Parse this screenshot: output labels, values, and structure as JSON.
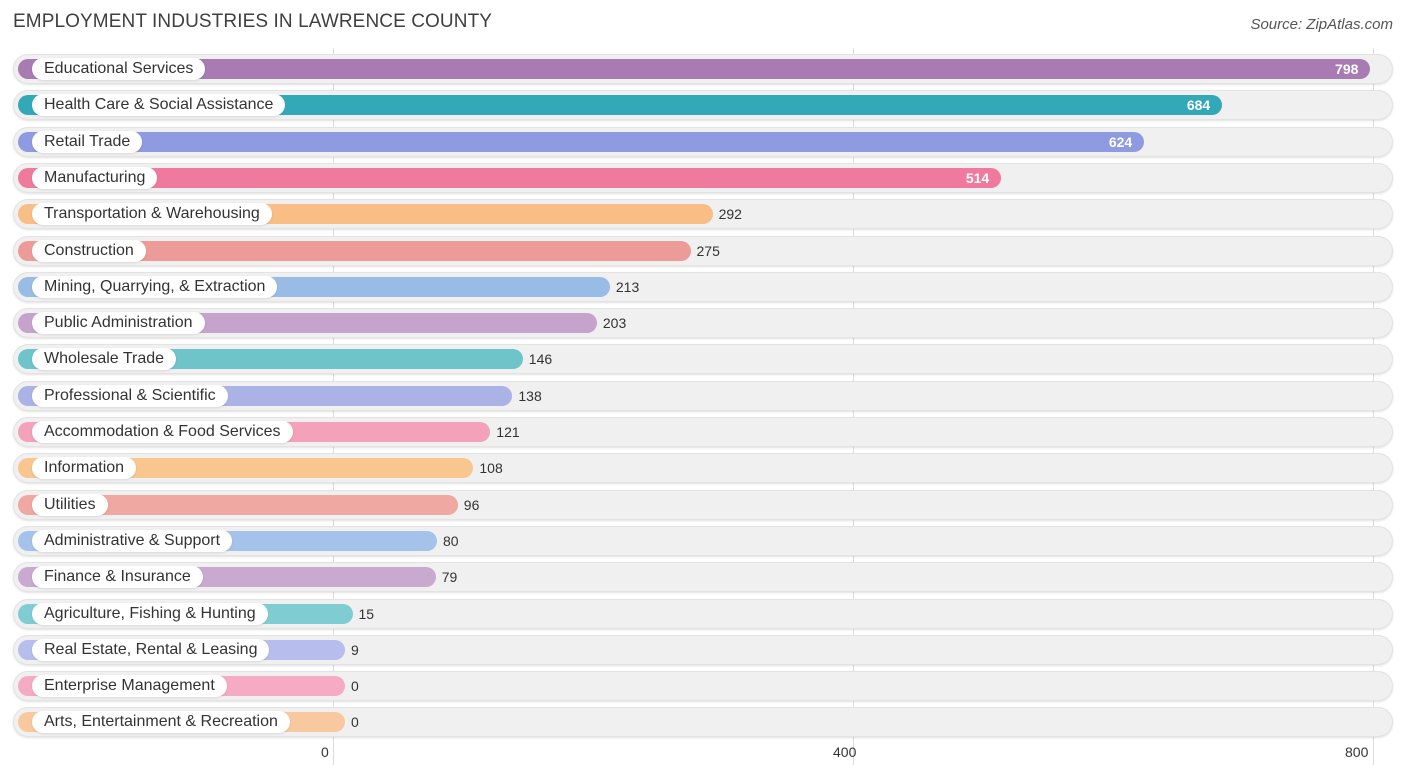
{
  "chart_data": {
    "type": "bar",
    "orientation": "horizontal",
    "title": "EMPLOYMENT INDUSTRIES IN LAWRENCE COUNTY",
    "source": "Source: ZipAtlas.com",
    "xlim": [
      0,
      800
    ],
    "ticks": [
      "0",
      "400",
      "800"
    ],
    "categories": [
      "Educational Services",
      "Health Care & Social Assistance",
      "Retail Trade",
      "Manufacturing",
      "Transportation & Warehousing",
      "Construction",
      "Mining, Quarrying, & Extraction",
      "Public Administration",
      "Wholesale Trade",
      "Professional & Scientific",
      "Accommodation & Food Services",
      "Information",
      "Utilities",
      "Administrative & Support",
      "Finance & Insurance",
      "Agriculture, Fishing & Hunting",
      "Real Estate, Rental & Leasing",
      "Enterprise Management",
      "Arts, Entertainment & Recreation"
    ],
    "values": [
      798,
      684,
      624,
      514,
      292,
      275,
      213,
      203,
      146,
      138,
      121,
      108,
      96,
      80,
      79,
      15,
      9,
      0,
      0
    ],
    "colors": [
      "#a87bb3",
      "#33a9b8",
      "#8f9be0",
      "#f07a9e",
      "#f8be85",
      "#ec9b98",
      "#98bce6",
      "#c6a3cc",
      "#6ec4c9",
      "#aab2e6",
      "#f4a1bb",
      "#f8c68e",
      "#efa8a2",
      "#a5c3ea",
      "#c9a9cf",
      "#7fcdd2",
      "#b7bdec",
      "#f5abc4",
      "#f8c99e"
    ]
  }
}
